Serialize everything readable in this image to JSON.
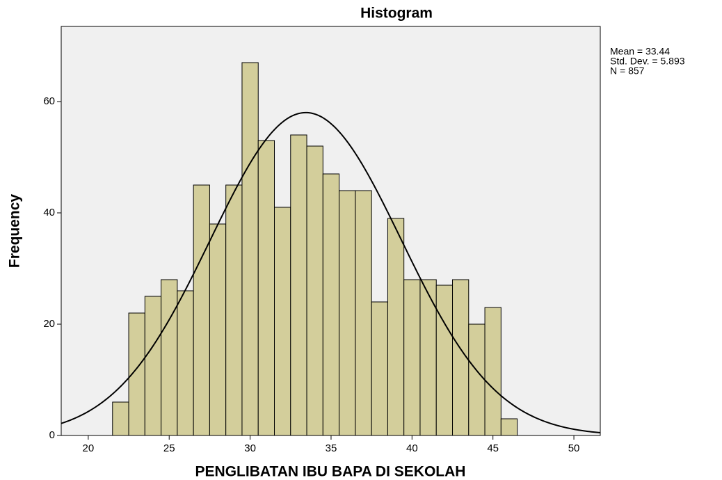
{
  "chart_data": {
    "type": "histogram",
    "title": "Histogram",
    "x_label": "PENGLIBATAN IBU BAPA DI SEKOLAH",
    "y_label": "Frequency",
    "bins": [
      21.5,
      22.5,
      23.5,
      24.5,
      25.5,
      26.5,
      27.5,
      28.5,
      29.5,
      30.5,
      31.5,
      32.5,
      33.5,
      34.5,
      35.5,
      36.5,
      37.5,
      38.5,
      39.5,
      40.5,
      41.5,
      42.5,
      43.5,
      44.5,
      45.5,
      46.5
    ],
    "values": [
      6,
      22,
      25,
      28,
      26,
      45,
      38,
      45,
      67,
      53,
      41,
      54,
      52,
      47,
      44,
      44,
      24,
      39,
      28,
      28,
      27,
      28,
      20,
      23,
      3
    ],
    "color": "#d3ce9b",
    "background": "#f0f0f0",
    "xlim": [
      18.33,
      51.63
    ],
    "xticks": [
      20,
      25,
      30,
      35,
      40,
      45,
      50
    ],
    "ylim": [
      0,
      73.5
    ],
    "yticks": [
      0,
      20,
      40,
      60
    ],
    "stats": {
      "mean": 33.44,
      "std_dev": 5.893,
      "n": 857,
      "labels": [
        "Mean = 33.44",
        "Std. Dev. = 5.893",
        "N = 857"
      ]
    },
    "normal_curve": true
  }
}
